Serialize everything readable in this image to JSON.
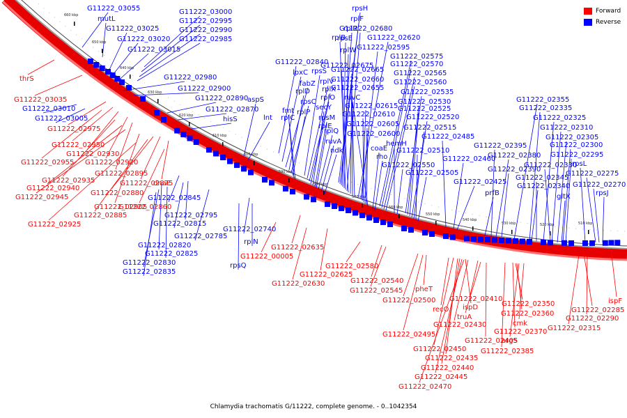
{
  "colors": {
    "forward": "#ff0000",
    "reverse": "#0000ff"
  },
  "legend": [
    {
      "label": "Forward",
      "color": "#ff0000"
    },
    {
      "label": "Reverse",
      "color": "#0000ff"
    }
  ],
  "caption": "Chlamydia trachomatis G/11222, complete genome. - 0..1042354",
  "kbp_marks": [
    "660 kbp",
    "650 kbp",
    "640 kbp",
    "630 kbp",
    "620 kbp",
    "610 kbp",
    "600 kbp",
    "590 kbp",
    "580 kbp",
    "570 kbp",
    "560 kbp",
    "550 kbp",
    "540 kbp",
    "530 kbp",
    "520 kbp",
    "510 kbp"
  ],
  "reverse_labels": [
    "G11222_03055",
    "mutL",
    "G11222_03000",
    "G11222_02995",
    "G11222_03025",
    "G11222_02990",
    "G11222_03020",
    "G11222_02985",
    "G11222_03015",
    "G11222_02980",
    "G11222_02900",
    "G11222_03010",
    "G11222_03005",
    "G11222_02890",
    "G11222_02870",
    "hisS",
    "aspS",
    "lnt",
    "G11222_02840",
    "lpxC",
    "fabZ",
    "rplD",
    "rpsC",
    "rplP",
    "rplC",
    "fmt",
    "G11222_02845",
    "G11222_02795",
    "G11222_02815",
    "G11222_02785",
    "G11222_02820",
    "G11222_02825",
    "G11222_02830",
    "G11222_02835",
    "G11222_02740",
    "rplN",
    "rpsQ",
    "rpsS",
    "rplV",
    "rplX",
    "rplO",
    "secY",
    "rpsM",
    "rplE",
    "rplQ",
    "ruvA",
    "ndk",
    "rpsH",
    "rplF",
    "rplR",
    "rpsE",
    "rplW",
    "rplB",
    "G11222_02680",
    "G11222_02675",
    "G11222_02665",
    "G11222_02660",
    "G11222_02655",
    "G11222_02620",
    "G11222_02595",
    "G11222_02575",
    "G11222_02570",
    "G11222_02565",
    "G11222_02560",
    "G11222_02535",
    "G11222_02530",
    "G11222_02525",
    "G11222_02520",
    "G11222_02515",
    "G11222_02510",
    "G11222_02505",
    "G11222_02615",
    "G11222_02610",
    "G11222_02605",
    "G11222_02600",
    "ruvC",
    "coaE",
    "rho",
    "hemH",
    "G11222_02550",
    "G11222_02485",
    "G11222_02460",
    "G11222_02425",
    "prfB",
    "G11222_02395",
    "G11222_02380",
    "G11222_02390",
    "G11222_02355",
    "G11222_02335",
    "G11222_02325",
    "G11222_02310",
    "G11222_02305",
    "G11222_02300",
    "G11222_02295",
    "G11222_02330",
    "G11222_02345",
    "G11222_02340",
    "gltX",
    "rpsL",
    "G11222_02275",
    "G11222_02270",
    "rpsJ"
  ],
  "forward_labels": [
    "thrS",
    "G11222_03035",
    "G11222_02975",
    "G11222_02950",
    "G11222_02930",
    "G11222_02955",
    "G11222_02920",
    "G11222_02895",
    "G11222_02935",
    "G11222_02875",
    "dnaE",
    "G11222_02940",
    "G11222_02880",
    "G11222_02945",
    "G11222_02905",
    "G11222_02860",
    "G11222_02885",
    "G11222_02925",
    "G11222_02635",
    "G11222_00005",
    "G11222_02625",
    "G11222_02630",
    "G11222_02580",
    "G11222_02540",
    "G11222_02545",
    "pheT",
    "G11222_02500",
    "G11222_02410",
    "recO",
    "ispD",
    "truA",
    "G11222_02430",
    "G11222_02495",
    "G11222_02405",
    "G11222_02450",
    "G11222_02435",
    "G11222_02440",
    "G11222_02445",
    "G11222_02470",
    "G11222_02350",
    "G11222_02360",
    "cmk",
    "G11222_02370",
    "argS",
    "G11222_02385",
    "ispF",
    "G11222_02285",
    "G11222_02290",
    "G11222_02315"
  ]
}
